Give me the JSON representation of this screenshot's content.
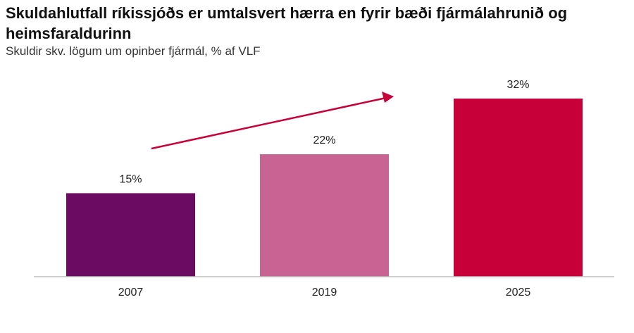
{
  "chart_data": {
    "type": "bar",
    "title": "Skuldahlutfall ríkissjóðs er umtalsvert hærra en fyrir bæði fjármálahrunið og heimsfaraldurinn",
    "subtitle": "Skuldir skv. lögum um opinber fjármál, % af VLF",
    "xlabel": "",
    "ylabel": "",
    "categories": [
      "2007",
      "2019",
      "2025"
    ],
    "values": [
      15,
      22,
      32
    ],
    "value_labels": [
      "15%",
      "22%",
      "32%"
    ],
    "colors": [
      "#6b0c62",
      "#c86394",
      "#c8003a"
    ],
    "arrow_color": "#c8003a",
    "axis_color": "#bdbdbd",
    "ylim": [
      0,
      40
    ],
    "grid": false,
    "legend": "none"
  }
}
